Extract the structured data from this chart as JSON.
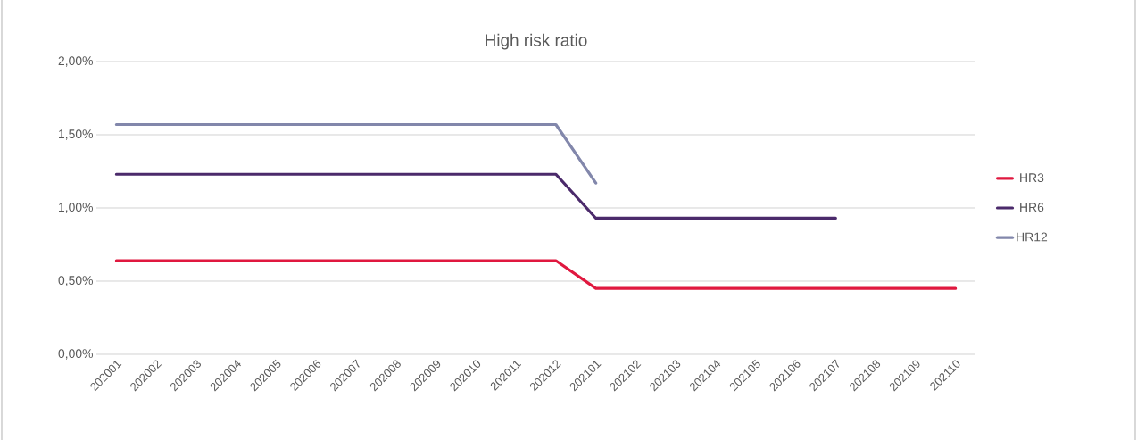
{
  "chart_data": {
    "type": "line",
    "title": "High risk ratio",
    "categories": [
      "202001",
      "202002",
      "202003",
      "202004",
      "202005",
      "202006",
      "202007",
      "202008",
      "202009",
      "202010",
      "202011",
      "202012",
      "202101",
      "202102",
      "202103",
      "202104",
      "202105",
      "202106",
      "202107",
      "202108",
      "202109",
      "202110"
    ],
    "series": [
      {
        "name": "HR3",
        "color": "#e0183f",
        "values": [
          0.64,
          0.64,
          0.64,
          0.64,
          0.64,
          0.64,
          0.64,
          0.64,
          0.64,
          0.64,
          0.64,
          0.64,
          0.45,
          0.45,
          0.45,
          0.45,
          0.45,
          0.45,
          0.45,
          0.45,
          0.45,
          0.45
        ]
      },
      {
        "name": "HR6",
        "color": "#4b2a6b",
        "values": [
          1.23,
          1.23,
          1.23,
          1.23,
          1.23,
          1.23,
          1.23,
          1.23,
          1.23,
          1.23,
          1.23,
          1.23,
          0.93,
          0.93,
          0.93,
          0.93,
          0.93,
          0.93,
          0.93,
          null,
          null,
          null
        ]
      },
      {
        "name": "HR12",
        "color": "#8287ab",
        "values": [
          1.57,
          1.57,
          1.57,
          1.57,
          1.57,
          1.57,
          1.57,
          1.57,
          1.57,
          1.57,
          1.57,
          1.57,
          1.17,
          null,
          null,
          null,
          null,
          null,
          null,
          null,
          null,
          null
        ]
      }
    ],
    "ylim": [
      0,
      2
    ],
    "yticks": [
      {
        "value": 0,
        "label": "0,00%"
      },
      {
        "value": 0.5,
        "label": "0,50%"
      },
      {
        "value": 1,
        "label": "1,00%"
      },
      {
        "value": 1.5,
        "label": "1,50%"
      },
      {
        "value": 2,
        "label": "2,00%"
      }
    ],
    "grid": "y",
    "legend": "right",
    "line_style": "solid"
  }
}
